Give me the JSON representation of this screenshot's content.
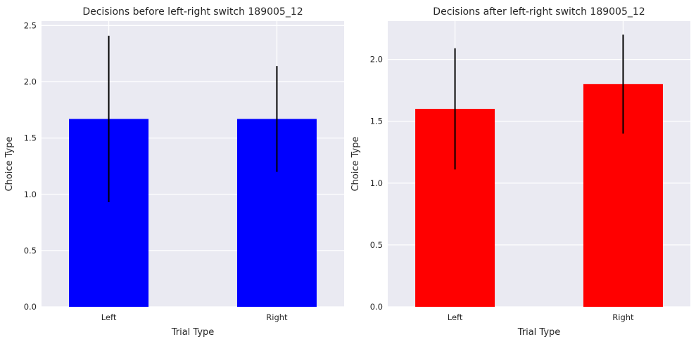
{
  "chart_data": [
    {
      "type": "bar",
      "title": "Decisions before left-right switch 189005_12",
      "xlabel": "Trial Type",
      "ylabel": "Choice Type",
      "categories": [
        "Left",
        "Right"
      ],
      "values": [
        1.67,
        1.67
      ],
      "error": [
        0.74,
        0.47
      ],
      "ylim": [
        0,
        2.54
      ],
      "yticks": [
        "0.0",
        "0.5",
        "1.0",
        "1.5",
        "2.0",
        "2.5"
      ],
      "bar_color": "#0000ff",
      "grid": true,
      "background": "#eaeaf2"
    },
    {
      "type": "bar",
      "title": "Decisions after left-right switch 189005_12",
      "xlabel": "Trial Type",
      "ylabel": "Choice Type",
      "categories": [
        "Left",
        "Right"
      ],
      "values": [
        1.6,
        1.8
      ],
      "error": [
        0.49,
        0.4
      ],
      "ylim": [
        0,
        2.31
      ],
      "yticks": [
        "0.0",
        "0.5",
        "1.0",
        "1.5",
        "2.0"
      ],
      "bar_color": "#ff0000",
      "grid": true,
      "background": "#eaeaf2"
    }
  ]
}
